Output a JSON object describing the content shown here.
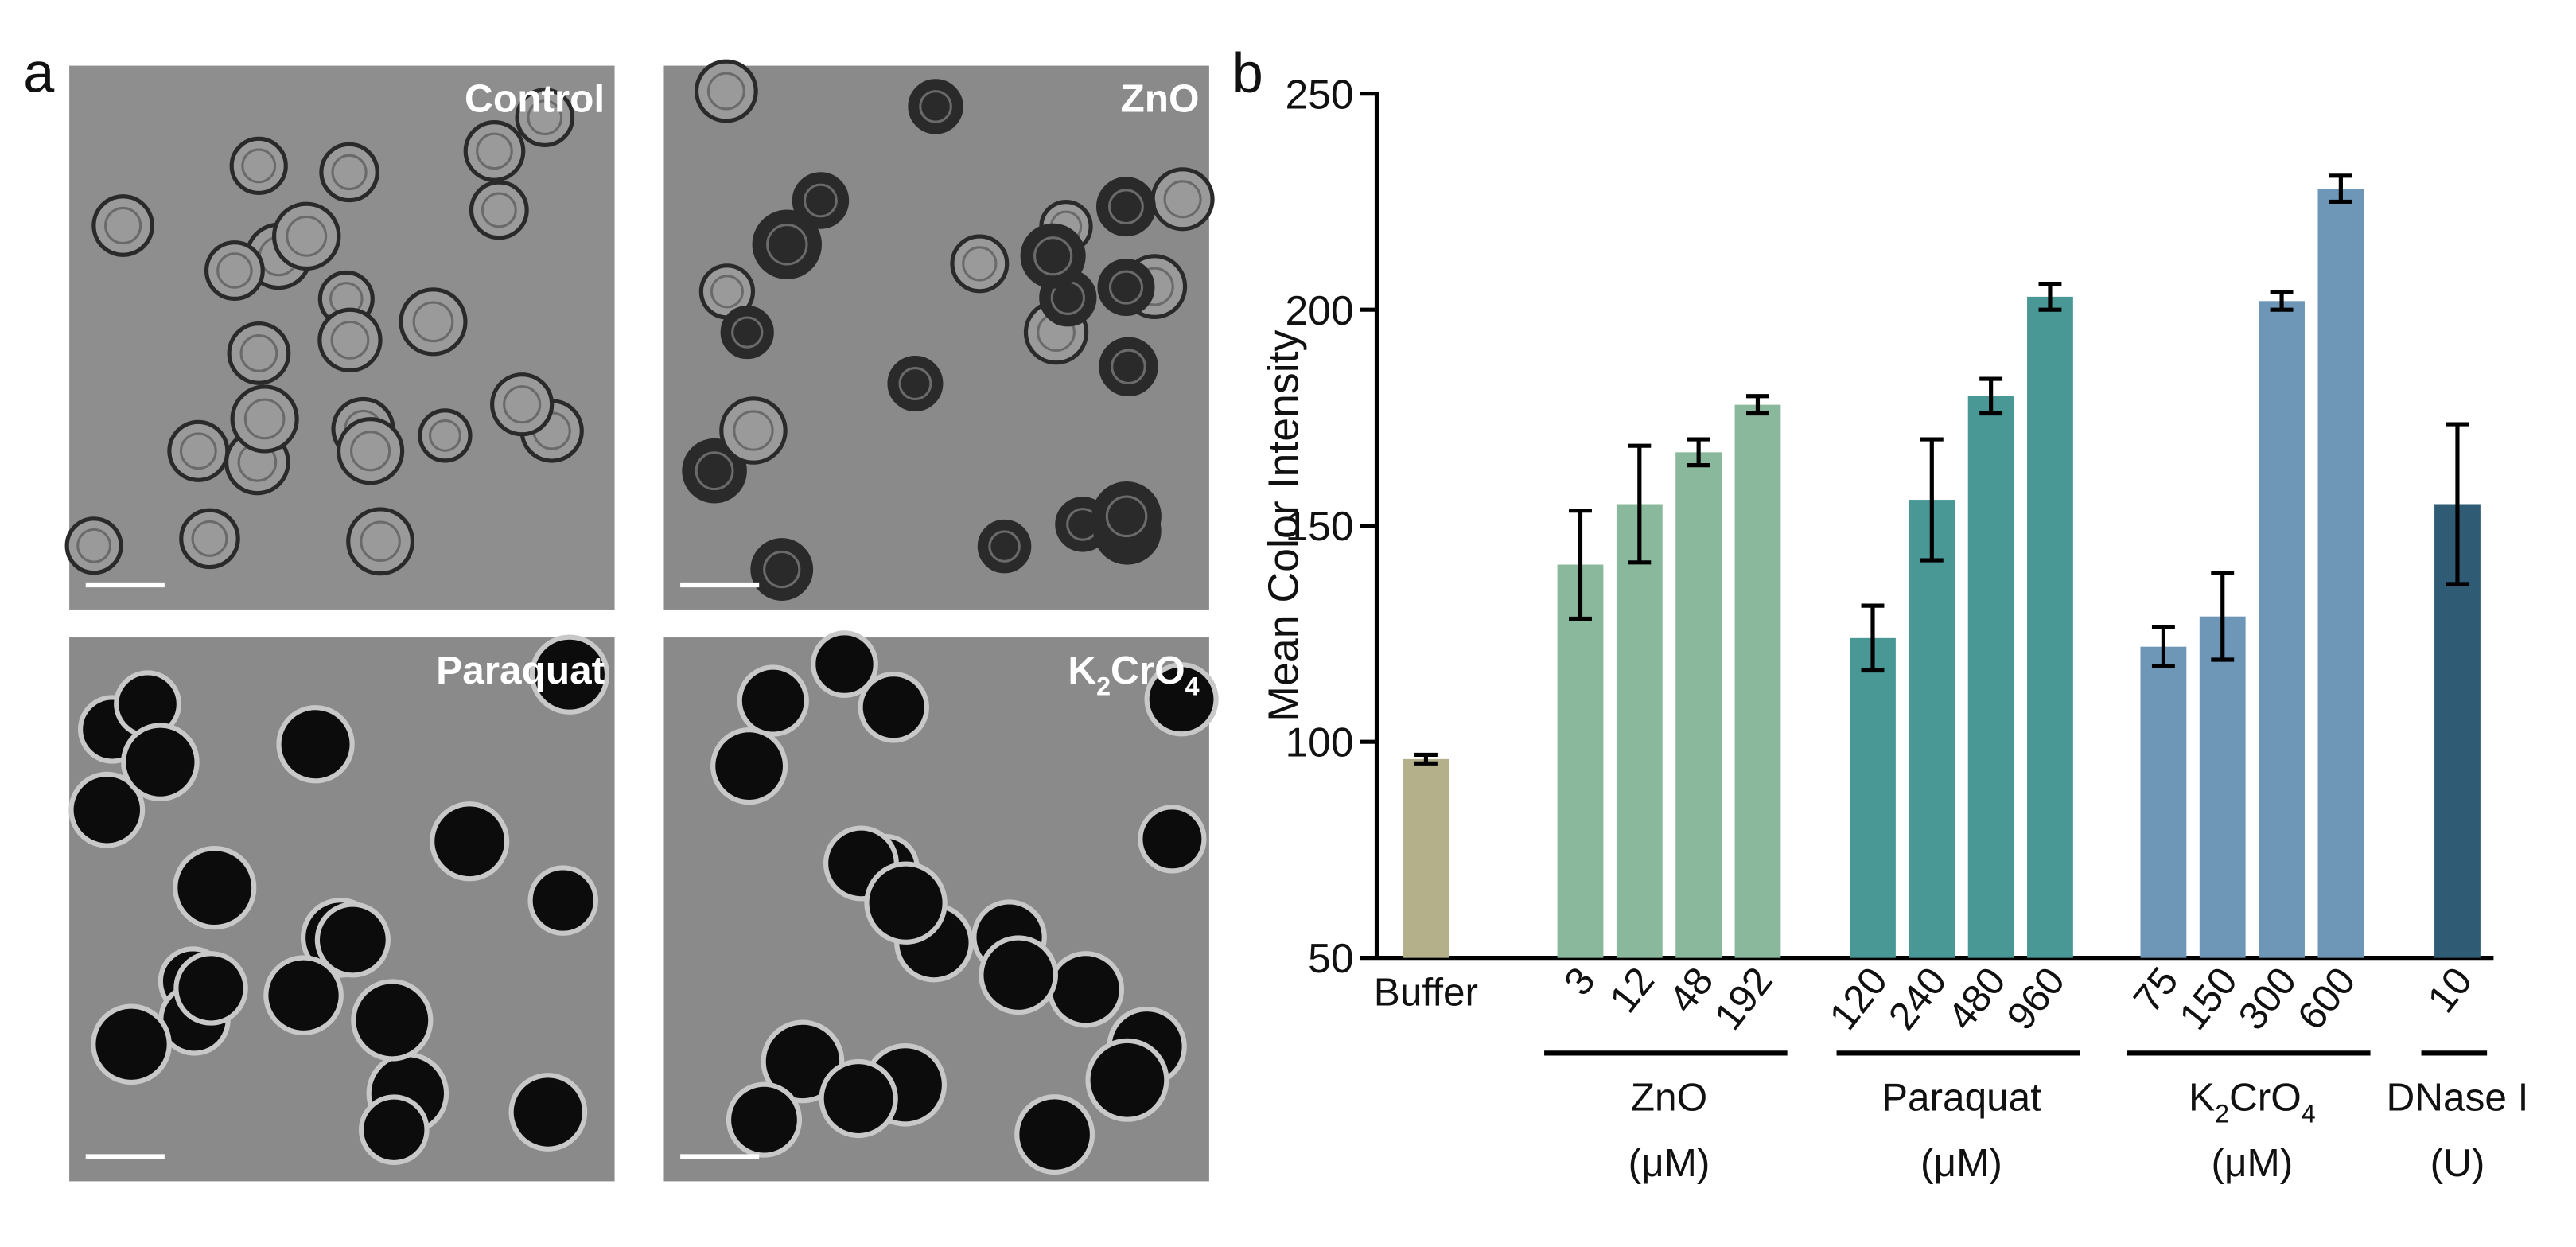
{
  "panel_a": {
    "label": "a",
    "images": [
      {
        "label": [
          "Control"
        ]
      },
      {
        "label": [
          "ZnO"
        ]
      },
      {
        "label": [
          "Paraquat"
        ]
      },
      {
        "label": [
          "K",
          "2",
          "CrO",
          "4"
        ]
      }
    ]
  },
  "chart_data": {
    "type": "bar",
    "panel_label": "b",
    "ylabel": "Mean Color Intensity",
    "ylim": [
      50,
      250
    ],
    "yticks": [
      50,
      100,
      150,
      200,
      250
    ],
    "groups": [
      {
        "categories": [
          "Buffer"
        ],
        "values": [
          96
        ],
        "errors": [
          1
        ],
        "color": "#b3b08a"
      },
      {
        "label": [
          "ZnO"
        ],
        "unit": "(μM)",
        "categories": [
          "3",
          "12",
          "48",
          "192"
        ],
        "values": [
          141,
          155,
          167,
          178
        ],
        "errors": [
          12.5,
          13.5,
          3,
          2
        ],
        "color": "#8ab89c"
      },
      {
        "label": [
          "Paraquat"
        ],
        "unit": "(μM)",
        "categories": [
          "120",
          "240",
          "480",
          "960"
        ],
        "values": [
          124,
          156,
          180,
          203
        ],
        "errors": [
          7.5,
          14,
          4,
          3
        ],
        "color": "#4a9896"
      },
      {
        "label": [
          "K",
          "2",
          "CrO",
          "4"
        ],
        "unit": "(μM)",
        "categories": [
          "75",
          "150",
          "300",
          "600"
        ],
        "values": [
          122,
          129,
          202,
          228
        ],
        "errors": [
          4.5,
          10,
          2,
          3
        ],
        "color": "#6e96b6"
      },
      {
        "label": [
          "DNase I"
        ],
        "unit": "(U)",
        "categories": [
          "10"
        ],
        "values": [
          155
        ],
        "errors": [
          18.5
        ],
        "color": "#2f5b74"
      }
    ]
  }
}
